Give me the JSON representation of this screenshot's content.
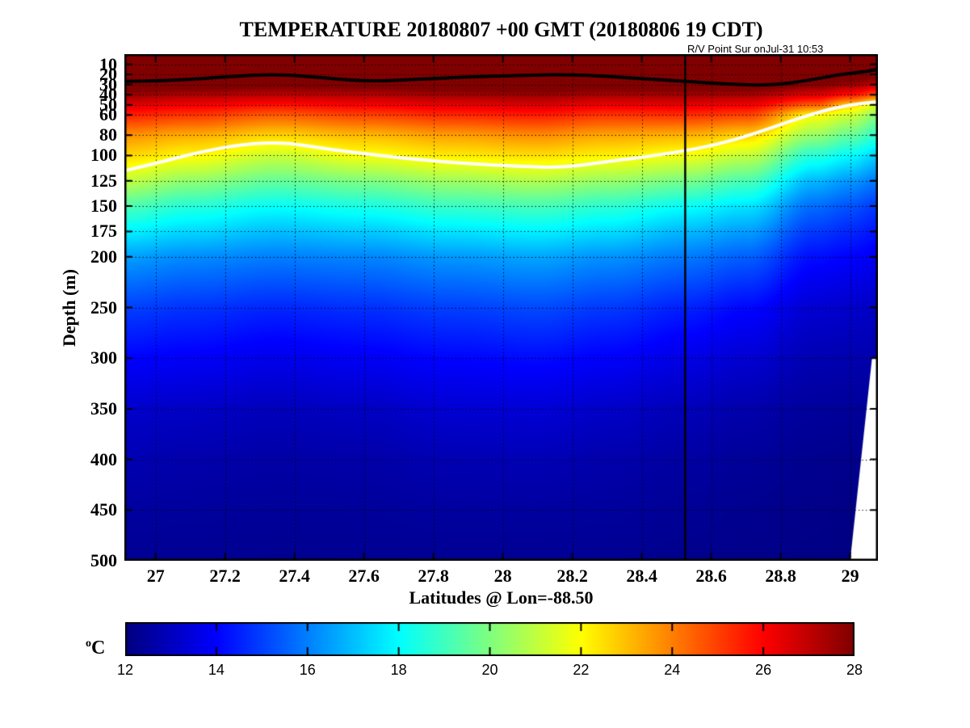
{
  "figure": {
    "background": "#ffffff"
  },
  "chart_data": {
    "type": "heatmap",
    "title": "TEMPERATURE 20180807 +00 GMT (20180806 19 CDT)",
    "annotation": "R/V Point Sur onJul-31 10:53",
    "xlabel": "Latitudes @ Lon=-88.50",
    "ylabel": "Depth (m)",
    "grid": "dotted",
    "colormap": "jet",
    "color_range": [
      12,
      28
    ],
    "x_range": [
      26.91,
      29.08
    ],
    "y_range": [
      0,
      500
    ],
    "x_ticks": [
      27,
      27.2,
      27.4,
      27.6,
      27.8,
      28,
      28.2,
      28.4,
      28.6,
      28.8,
      29
    ],
    "x_tick_labels": [
      "27",
      "27.2",
      "27.4",
      "27.6",
      "27.8",
      "28",
      "28.2",
      "28.4",
      "28.6",
      "28.8",
      "29"
    ],
    "y_ticks": [
      10,
      20,
      30,
      40,
      50,
      60,
      80,
      100,
      125,
      150,
      175,
      200,
      250,
      300,
      350,
      400,
      450,
      500
    ],
    "y_tick_labels": [
      "10",
      "20",
      "30",
      "40",
      "50",
      "60",
      "80",
      "100",
      "125",
      "150",
      "175",
      "200",
      "250",
      "300",
      "350",
      "400",
      "450",
      "500"
    ],
    "marker_line": {
      "lat": 28.525,
      "color": "#000000"
    },
    "depth_levels": [
      0,
      10,
      20,
      30,
      40,
      50,
      60,
      80,
      100,
      125,
      150,
      175,
      200,
      250,
      300,
      350,
      400,
      450,
      500
    ],
    "stations": [
      {
        "lat": 26.91,
        "temps": [
          30.0,
          30.0,
          29.6,
          28.7,
          27.6,
          26.5,
          25.5,
          23.7,
          22.6,
          21.0,
          19.2,
          17.8,
          16.5,
          15.0,
          14.0,
          13.2,
          12.8,
          12.5,
          12.3
        ]
      },
      {
        "lat": 27.1,
        "temps": [
          30.0,
          30.0,
          29.7,
          28.6,
          27.3,
          26.2,
          25.2,
          23.3,
          22.1,
          20.3,
          18.6,
          17.4,
          16.2,
          14.8,
          13.9,
          13.1,
          12.7,
          12.45,
          12.3
        ]
      },
      {
        "lat": 27.35,
        "temps": [
          30.0,
          30.0,
          29.3,
          28.2,
          27.1,
          25.8,
          24.6,
          22.7,
          21.2,
          19.6,
          18.1,
          17.0,
          16.0,
          14.6,
          13.7,
          12.95,
          12.6,
          12.4,
          12.25
        ]
      },
      {
        "lat": 27.6,
        "temps": [
          30.0,
          30.0,
          29.5,
          28.4,
          27.2,
          26.1,
          25.0,
          23.1,
          21.9,
          20.0,
          18.4,
          17.2,
          16.1,
          14.75,
          13.85,
          13.05,
          12.65,
          12.42,
          12.28
        ]
      },
      {
        "lat": 27.85,
        "temps": [
          30.0,
          30.0,
          29.6,
          28.6,
          27.5,
          26.4,
          25.4,
          23.5,
          22.3,
          20.5,
          18.9,
          17.6,
          16.4,
          15.0,
          14.05,
          13.3,
          12.8,
          12.5,
          12.3
        ]
      },
      {
        "lat": 28.1,
        "temps": [
          30.0,
          30.0,
          29.7,
          28.7,
          27.6,
          26.6,
          25.6,
          23.8,
          22.5,
          20.8,
          19.1,
          17.8,
          16.6,
          15.15,
          14.15,
          13.35,
          12.85,
          12.5,
          12.3
        ]
      },
      {
        "lat": 28.3,
        "temps": [
          30.0,
          30.0,
          29.6,
          28.5,
          27.4,
          26.3,
          25.2,
          23.4,
          22.2,
          20.4,
          18.7,
          17.5,
          16.3,
          14.9,
          13.95,
          13.15,
          12.7,
          12.45,
          12.3
        ]
      },
      {
        "lat": 28.53,
        "temps": [
          30.0,
          30.0,
          29.7,
          28.6,
          27.5,
          26.4,
          25.3,
          23.2,
          21.8,
          19.9,
          18.1,
          16.9,
          15.9,
          14.5,
          13.6,
          12.9,
          12.55,
          12.35,
          12.2
        ]
      },
      {
        "lat": 28.7,
        "temps": [
          30.0,
          30.0,
          29.8,
          28.7,
          27.4,
          26.2,
          25.0,
          22.7,
          21.1,
          19.2,
          17.6,
          16.5,
          15.5,
          14.1,
          13.3,
          12.7,
          12.4,
          12.25,
          12.15
        ]
      },
      {
        "lat": 28.9,
        "temps": [
          30.0,
          29.8,
          29.0,
          28.0,
          26.6,
          24.6,
          22.0,
          20.4,
          18.6,
          16.9,
          15.7,
          14.9,
          14.2,
          13.3,
          12.8,
          12.45,
          12.25,
          12.15,
          12.1
        ]
      },
      {
        "lat": 29.0,
        "temps": [
          30.0,
          29.7,
          28.8,
          27.6,
          25.8,
          22.8,
          21.3,
          19.6,
          18.0,
          16.4,
          15.3,
          14.6,
          14.0,
          13.2,
          12.75,
          12.4,
          12.2,
          12.1,
          12.05
        ]
      },
      {
        "lat": 29.08,
        "temps": [
          30.0,
          29.5,
          28.4,
          27.0,
          24.8,
          21.6,
          20.2,
          18.8,
          17.3,
          15.9,
          14.9,
          14.3,
          13.8,
          13.1,
          12.7,
          12.35,
          12.2,
          12.1,
          12.0
        ]
      }
    ],
    "contours": {
      "black": {
        "color": "#000000",
        "points": [
          [
            26.91,
            27
          ],
          [
            27.05,
            26
          ],
          [
            27.2,
            22.5
          ],
          [
            27.35,
            19.5
          ],
          [
            27.5,
            24
          ],
          [
            27.62,
            27
          ],
          [
            27.75,
            25
          ],
          [
            27.9,
            22.5
          ],
          [
            28.05,
            21
          ],
          [
            28.18,
            20
          ],
          [
            28.3,
            22
          ],
          [
            28.42,
            24.5
          ],
          [
            28.53,
            27
          ],
          [
            28.65,
            29.5
          ],
          [
            28.77,
            31
          ],
          [
            28.88,
            26
          ],
          [
            28.97,
            20
          ],
          [
            29.05,
            17
          ],
          [
            29.08,
            15
          ]
        ]
      },
      "white": {
        "color": "#ffffff",
        "points": [
          [
            26.91,
            115
          ],
          [
            27.0,
            108
          ],
          [
            27.12,
            97
          ],
          [
            27.25,
            89
          ],
          [
            27.37,
            87
          ],
          [
            27.5,
            94
          ],
          [
            27.62,
            99
          ],
          [
            27.75,
            104
          ],
          [
            27.9,
            108
          ],
          [
            28.05,
            111
          ],
          [
            28.18,
            112
          ],
          [
            28.32,
            105
          ],
          [
            28.42,
            101
          ],
          [
            28.53,
            95
          ],
          [
            28.62,
            89
          ],
          [
            28.72,
            79
          ],
          [
            28.82,
            67
          ],
          [
            28.92,
            56
          ],
          [
            29.0,
            50
          ],
          [
            29.08,
            47
          ]
        ]
      }
    },
    "missing_region": {
      "color": "#ffffff",
      "points": [
        [
          29.063,
          300
        ],
        [
          29.08,
          300
        ],
        [
          29.08,
          500
        ],
        [
          29.0,
          500
        ]
      ]
    },
    "colorbar": {
      "label_sup": "o",
      "label_main": "C",
      "ticks": [
        12,
        14,
        16,
        18,
        20,
        22,
        24,
        26,
        28
      ],
      "tick_labels": [
        "12",
        "14",
        "16",
        "18",
        "20",
        "22",
        "24",
        "26",
        "28"
      ]
    }
  }
}
